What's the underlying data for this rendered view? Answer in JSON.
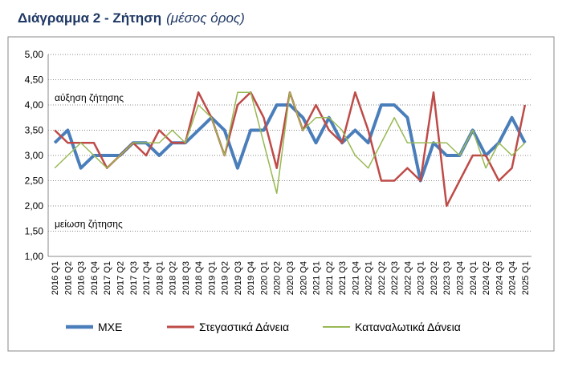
{
  "chart_data": {
    "type": "line",
    "title": "Διάγραμμα 2 - Ζήτηση",
    "subtitle": "(μέσος όρος)",
    "annotations": [
      "αύξηση ζήτησης",
      "μείωση ζήτησης"
    ],
    "categories": [
      "2016 Q1",
      "2016 Q2",
      "2016 Q3",
      "2016 Q4",
      "2017 Q1",
      "2017 Q2",
      "2017 Q3",
      "2017 Q4",
      "2018 Q1",
      "2018 Q2",
      "2018 Q3",
      "2018 Q4",
      "2019 Q1",
      "2019 Q2",
      "2019 Q3",
      "2019 Q4",
      "2020 Q1",
      "2020 Q2",
      "2020 Q3",
      "2020 Q4",
      "2021 Q1",
      "2021 Q2",
      "2021 Q3",
      "2021 Q4",
      "2022 Q1",
      "2022 Q2",
      "2022 Q3",
      "2022 Q4",
      "2023 Q1",
      "2023 Q2",
      "2023 Q3",
      "2023 Q4",
      "2024 Q1",
      "2024 Q2",
      "2024 Q3",
      "2024 Q4",
      "2025 Q1"
    ],
    "series": [
      {
        "name": "ΜΧΕ",
        "color": "#4a7ebb",
        "width": 4,
        "values": [
          3.25,
          3.5,
          2.75,
          3.0,
          3.0,
          3.0,
          3.25,
          3.25,
          3.0,
          3.25,
          3.25,
          3.5,
          3.75,
          3.5,
          2.75,
          3.5,
          3.5,
          4.0,
          4.0,
          3.75,
          3.25,
          3.75,
          3.25,
          3.5,
          3.25,
          4.0,
          4.0,
          3.75,
          2.5,
          3.25,
          3.0,
          3.0,
          3.5,
          3.0,
          3.25,
          3.75,
          3.25
        ]
      },
      {
        "name": "Στεγαστικά Δάνεια",
        "color": "#be4b48",
        "width": 2.5,
        "values": [
          3.5,
          3.25,
          3.25,
          3.25,
          2.75,
          3.0,
          3.25,
          3.0,
          3.5,
          3.25,
          3.25,
          4.25,
          3.75,
          3.0,
          4.0,
          4.25,
          3.75,
          2.75,
          4.25,
          3.5,
          4.0,
          3.5,
          3.25,
          4.25,
          3.5,
          2.5,
          2.5,
          2.75,
          2.5,
          4.25,
          2.0,
          2.5,
          3.0,
          3.0,
          2.5,
          2.75,
          4.0
        ]
      },
      {
        "name": "Καταναλωτικά Δάνεια",
        "color": "#98b954",
        "width": 1.5,
        "values": [
          2.75,
          3.0,
          3.25,
          3.0,
          2.75,
          3.0,
          3.25,
          3.25,
          3.25,
          3.5,
          3.25,
          4.0,
          3.75,
          3.0,
          4.25,
          4.25,
          3.25,
          2.25,
          4.25,
          3.5,
          3.75,
          3.75,
          3.5,
          3.0,
          2.75,
          3.25,
          3.75,
          3.25,
          3.25,
          3.25,
          3.25,
          3.0,
          3.5,
          2.75,
          3.25,
          3.0,
          3.25
        ]
      }
    ],
    "ylim": [
      1,
      5
    ],
    "yticks": [
      {
        "value": 1,
        "label": "1,00"
      },
      {
        "value": 1.5,
        "label": "1,50"
      },
      {
        "value": 2,
        "label": "2,00"
      },
      {
        "value": 2.5,
        "label": "2,50"
      },
      {
        "value": 3,
        "label": "3,00"
      },
      {
        "value": 3.5,
        "label": "3,50"
      },
      {
        "value": 4,
        "label": "4,00"
      },
      {
        "value": 4.5,
        "label": "4,50"
      },
      {
        "value": 5,
        "label": "5,00"
      }
    ],
    "grid": true
  }
}
